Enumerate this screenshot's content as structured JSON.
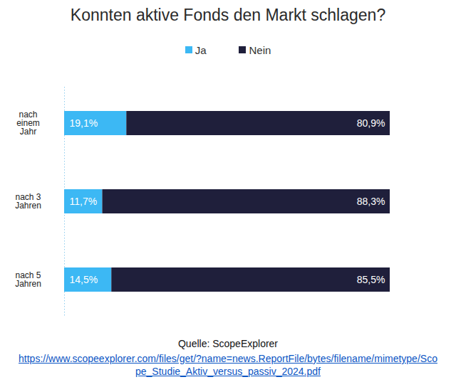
{
  "chart_data": {
    "type": "bar",
    "orientation": "horizontal",
    "stacked": true,
    "title": "Konnten aktive Fonds den Markt schlagen?",
    "categories": [
      "nach einem Jahr",
      "nach 3 Jahren",
      "nach 5 Jahren"
    ],
    "series": [
      {
        "name": "Ja",
        "color": "#3cb8f4",
        "values": [
          19.1,
          11.7,
          14.5
        ],
        "value_labels": [
          "19,1%",
          "11,7%",
          "14,5%"
        ]
      },
      {
        "name": "Nein",
        "color": "#1f1f3b",
        "values": [
          80.9,
          88.3,
          85.5
        ],
        "value_labels": [
          "80,9%",
          "88,3%",
          "85,5%"
        ]
      }
    ],
    "xlim": [
      0,
      100
    ],
    "data_labels": true,
    "tick_labels": "y",
    "grid": false,
    "legend": "top",
    "source": "Quelle: ScopeExplorer",
    "source_url": "https://www.scopeexplorer.com/files/get/?name=news.ReportFile/bytes/filename/mimetype/Scope_Studie_Aktiv_versus_passiv_2024.pdf"
  }
}
